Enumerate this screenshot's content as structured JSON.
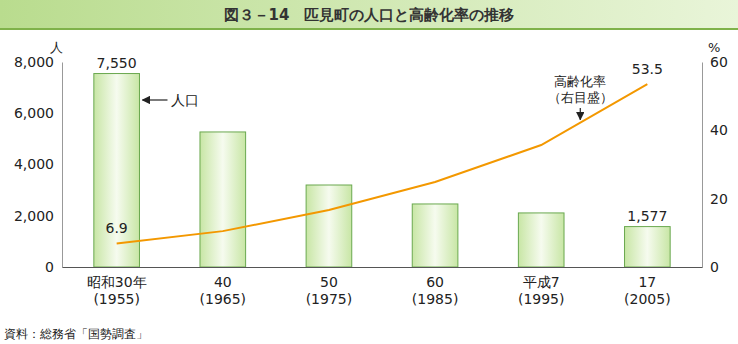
{
  "chart_data": {
    "type": "bar",
    "title": "図３－14　匹見町の人口と高齢化率の推移",
    "source": "資料：総務省「国勢調査」",
    "y_label": "人",
    "y2_label": "%",
    "categories": [
      "昭和30年\n(1955)",
      "40\n(1965)",
      "50\n(1975)",
      "60\n(1985)",
      "平成7\n(1995)",
      "17\n(2005)"
    ],
    "ylim": [
      0,
      8000
    ],
    "yticks": [
      0,
      {
        "value": 2000,
        "label": "2,000"
      },
      {
        "value": 4000,
        "label": "4,000"
      },
      {
        "value": 6000,
        "label": "6,000"
      },
      {
        "value": 8000,
        "label": "8,000"
      }
    ],
    "y2lim": [
      0,
      60
    ],
    "y2ticks": [
      0,
      20,
      40,
      60
    ],
    "data_labels": true,
    "series": [
      {
        "name": "人口",
        "type": "bar",
        "color": "#c8e6a5",
        "values": [
          7550,
          5270,
          3200,
          2460,
          2110,
          1577
        ],
        "value_labels": [
          "7,550",
          null,
          null,
          null,
          null,
          "1,577"
        ]
      },
      {
        "name": "高齢化率",
        "type": "line",
        "axis": "y2",
        "color": "#f39800",
        "values": [
          6.9,
          10.5,
          16.7,
          24.9,
          35.7,
          53.5
        ],
        "value_labels": [
          "6.9",
          null,
          null,
          null,
          null,
          "53.5"
        ]
      }
    ],
    "annotations": [
      {
        "text": "（右目盛）"
      }
    ]
  }
}
